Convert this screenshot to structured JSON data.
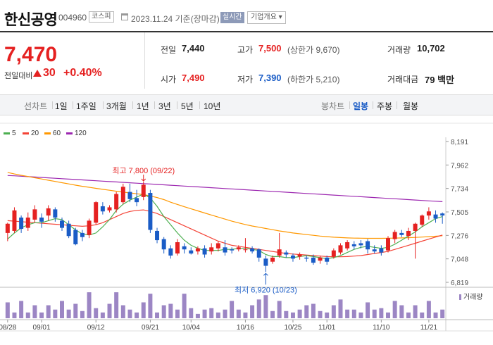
{
  "header": {
    "name": "한신공영",
    "code": "004960",
    "market": "코스피",
    "date": "2023.11.24 기준(장마감)",
    "realtime": "실시간",
    "company_info": "기업개요 ▾"
  },
  "summary": {
    "price": "7,470",
    "change_label": "전일대비",
    "change_icon": "up-triangle",
    "change": "30",
    "change_pct": "+0.40%"
  },
  "stats": {
    "prev_label": "전일",
    "prev": "7,440",
    "high_label": "고가",
    "high": "7,500",
    "upper_limit": "(상한가 9,670)",
    "volume_label": "거래량",
    "volume": "10,702",
    "open_label": "시가",
    "open": "7,490",
    "low_label": "저가",
    "low": "7,390",
    "lower_limit": "(하한가 5,210)",
    "amount_label": "거래대금",
    "amount": "79 백만"
  },
  "toolbar": {
    "line_chart": "선차트",
    "periods": [
      "1일",
      "1주일",
      "3개월",
      "1년",
      "3년",
      "5년",
      "10년"
    ],
    "candle_chart": "봉차트",
    "candle_periods": [
      "일봉",
      "주봉",
      "월봉"
    ],
    "selected_candle": "일봉"
  },
  "colors": {
    "up": "#e52121",
    "down": "#1a5cc6",
    "ma5": "#4caf50",
    "ma20": "#f44336",
    "ma60": "#ff9800",
    "ma120": "#9c27b0",
    "volume": "#9c86c4"
  },
  "chart_data": {
    "type": "candlestick",
    "ma_legend": [
      "5",
      "20",
      "60",
      "120"
    ],
    "y_ticks": [
      "8,191",
      "7,962",
      "7,734",
      "7,505",
      "7,276",
      "7,048",
      "6,819"
    ],
    "ylim": [
      6819,
      8191
    ],
    "x_ticks": [
      "08/28",
      "09/01",
      "09/12",
      "09/21",
      "10/04",
      "10/16",
      "10/25",
      "11/01",
      "11/10",
      "11/21"
    ],
    "max_label": "최고 7,800 (09/22)",
    "min_label": "최저 6,920 (10/23)",
    "volume_label": "거래량",
    "candles": [
      [
        7300,
        7390,
        7220,
        7400
      ],
      [
        7320,
        7520,
        7300,
        7550
      ],
      [
        7450,
        7340,
        7300,
        7470
      ],
      [
        7350,
        7450,
        7320,
        7500
      ],
      [
        7430,
        7530,
        7400,
        7570
      ],
      [
        7450,
        7410,
        7350,
        7490
      ],
      [
        7470,
        7540,
        7420,
        7570
      ],
      [
        7530,
        7450,
        7410,
        7550
      ],
      [
        7420,
        7350,
        7320,
        7450
      ],
      [
        7390,
        7270,
        7250,
        7420
      ],
      [
        7330,
        7190,
        7180,
        7350
      ],
      [
        7300,
        7260,
        7220,
        7330
      ],
      [
        7280,
        7420,
        7250,
        7440
      ],
      [
        7400,
        7600,
        7380,
        7610
      ],
      [
        7560,
        7510,
        7480,
        7600
      ],
      [
        7520,
        7550,
        7500,
        7570
      ],
      [
        7530,
        7680,
        7500,
        7700
      ],
      [
        7600,
        7750,
        7580,
        7780
      ],
      [
        7700,
        7630,
        7600,
        7780
      ],
      [
        7640,
        7600,
        7560,
        7720
      ],
      [
        7650,
        7770,
        7620,
        7800
      ],
      [
        7690,
        7330,
        7300,
        7720
      ],
      [
        7320,
        7230,
        7200,
        7350
      ],
      [
        7240,
        7140,
        7100,
        7260
      ],
      [
        7150,
        7080,
        7050,
        7180
      ],
      [
        7100,
        7210,
        7080,
        7240
      ],
      [
        7170,
        7140,
        7100,
        7200
      ],
      [
        7130,
        7100,
        7090,
        7160
      ],
      [
        7120,
        7150,
        7090,
        7170
      ],
      [
        7150,
        7090,
        7060,
        7180
      ],
      [
        7120,
        7160,
        7090,
        7200
      ],
      [
        7150,
        7200,
        7120,
        7220
      ],
      [
        7160,
        7110,
        7080,
        7230
      ],
      [
        7140,
        7130,
        7100,
        7160
      ],
      [
        7140,
        7160,
        7120,
        7180
      ],
      [
        7140,
        7140,
        7110,
        7250
      ],
      [
        7150,
        7120,
        7100,
        7170
      ],
      [
        7140,
        7060,
        7020,
        7150
      ],
      [
        7050,
        6980,
        6920,
        7080
      ],
      [
        7020,
        7060,
        7000,
        7080
      ],
      [
        7080,
        7140,
        7060,
        7300
      ],
      [
        7110,
        7090,
        7060,
        7130
      ],
      [
        7080,
        7050,
        7020,
        7100
      ],
      [
        7070,
        7090,
        7040,
        7110
      ],
      [
        7060,
        7050,
        7020,
        7080
      ],
      [
        7060,
        7010,
        6990,
        7090
      ],
      [
        7030,
        7060,
        7000,
        7080
      ],
      [
        7060,
        7020,
        6990,
        7080
      ],
      [
        7070,
        7130,
        7050,
        7150
      ],
      [
        7110,
        7180,
        7090,
        7200
      ],
      [
        7150,
        7210,
        7130,
        7230
      ],
      [
        7190,
        7170,
        7140,
        7220
      ],
      [
        7200,
        7180,
        7150,
        7230
      ],
      [
        7220,
        7140,
        7100,
        7240
      ],
      [
        7140,
        7120,
        7100,
        7180
      ],
      [
        7150,
        7110,
        7080,
        7180
      ],
      [
        7130,
        7250,
        7110,
        7270
      ],
      [
        7240,
        7310,
        7200,
        7330
      ],
      [
        7300,
        7280,
        7260,
        7330
      ],
      [
        7270,
        7320,
        7230,
        7350
      ],
      [
        7320,
        7390,
        7050,
        7400
      ],
      [
        7380,
        7470,
        7360,
        7480
      ],
      [
        7470,
        7510,
        7430,
        7550
      ],
      [
        7480,
        7440,
        7400,
        7520
      ],
      [
        7490,
        7470,
        7390,
        7500
      ]
    ],
    "volumes": [
      0.55,
      0.2,
      0.6,
      0.2,
      0.45,
      0.2,
      0.45,
      0.3,
      0.6,
      0.3,
      0.5,
      0.25,
      0.9,
      0.35,
      0.2,
      0.5,
      0.9,
      0.45,
      0.3,
      0.2,
      0.55,
      0.85,
      0.2,
      0.45,
      0.5,
      0.3,
      0.85,
      0.35,
      0.15,
      0.3,
      0.35,
      0.2,
      0.3,
      0.6,
      0.3,
      0.2,
      0.45,
      0.65,
      0.8,
      0.25,
      0.6,
      0.25,
      0.2,
      0.3,
      0.45,
      0.5,
      0.25,
      0.2,
      0.45,
      0.65,
      0.3,
      0.3,
      0.2,
      0.55,
      0.3,
      0.35,
      0.2,
      0.6,
      0.45,
      0.2,
      0.45,
      0.2,
      0.6,
      0.2,
      0.3
    ],
    "ma5": [
      7240,
      7300,
      7350,
      7380,
      7400,
      7400,
      7420,
      7440,
      7430,
      7380,
      7330,
      7290,
      7280,
      7300,
      7360,
      7430,
      7520,
      7580,
      7620,
      7650,
      7680,
      7640,
      7560,
      7460,
      7380,
      7300,
      7230,
      7180,
      7150,
      7130,
      7130,
      7130,
      7140,
      7140,
      7150,
      7150,
      7140,
      7130,
      7090,
      7070,
      7070,
      7060,
      7060,
      7070,
      7080,
      7070,
      7060,
      7050,
      7060,
      7080,
      7110,
      7140,
      7160,
      7170,
      7160,
      7150,
      7160,
      7190,
      7230,
      7270,
      7310,
      7360,
      7400,
      7440,
      7460
    ],
    "ma20": [
      7420,
      7415,
      7410,
      7405,
      7400,
      7395,
      7390,
      7385,
      7380,
      7375,
      7370,
      7365,
      7370,
      7380,
      7400,
      7430,
      7460,
      7490,
      7510,
      7520,
      7525,
      7510,
      7490,
      7460,
      7430,
      7400,
      7370,
      7340,
      7310,
      7280,
      7250,
      7220,
      7200,
      7180,
      7170,
      7160,
      7150,
      7140,
      7130,
      7120,
      7110,
      7100,
      7095,
      7090,
      7085,
      7080,
      7075,
      7070,
      7068,
      7068,
      7070,
      7075,
      7080,
      7090,
      7100,
      7110,
      7120,
      7140,
      7160,
      7180,
      7200,
      7220,
      7240,
      7260,
      7280
    ],
    "ma60": [
      7890,
      7875,
      7862,
      7850,
      7838,
      7826,
      7814,
      7802,
      7790,
      7778,
      7766,
      7755,
      7745,
      7735,
      7725,
      7716,
      7707,
      7698,
      7690,
      7682,
      7674,
      7660,
      7645,
      7625,
      7600,
      7578,
      7556,
      7535,
      7515,
      7495,
      7475,
      7455,
      7435,
      7415,
      7398,
      7382,
      7368,
      7356,
      7344,
      7332,
      7320,
      7310,
      7300,
      7292,
      7284,
      7277,
      7270,
      7264,
      7259,
      7255,
      7252,
      7250,
      7249,
      7248,
      7248,
      7248,
      7249,
      7250,
      7252,
      7254,
      7257,
      7260,
      7264,
      7268,
      7273
    ],
    "ma120": [
      7860,
      7857,
      7853,
      7849,
      7845,
      7841,
      7837,
      7833,
      7829,
      7825,
      7821,
      7817,
      7813,
      7809,
      7805,
      7801,
      7797,
      7793,
      7789,
      7785,
      7781,
      7777,
      7773,
      7769,
      7765,
      7761,
      7757,
      7753,
      7749,
      7745,
      7741,
      7737,
      7733,
      7729,
      7725,
      7721,
      7717,
      7713,
      7709,
      7705,
      7701,
      7697,
      7693,
      7689,
      7685,
      7681,
      7677,
      7673,
      7669,
      7665,
      7661,
      7657,
      7653,
      7649,
      7645,
      7641,
      7637,
      7633,
      7629,
      7625,
      7621,
      7617,
      7613,
      7609,
      7605
    ]
  }
}
